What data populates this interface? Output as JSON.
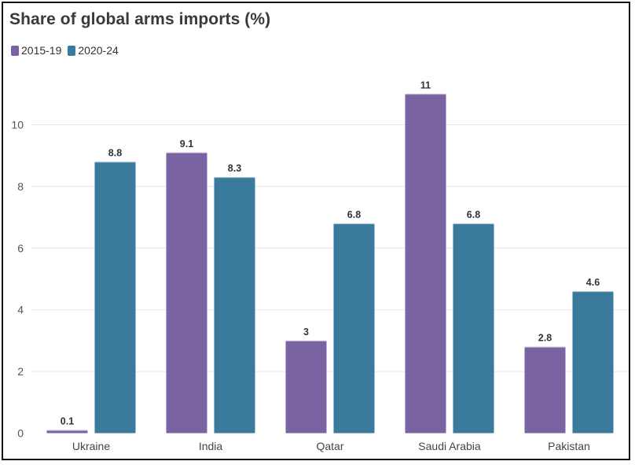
{
  "colors": {
    "series_1": "#7a63a3",
    "series_2": "#3a7a9c",
    "gridline": "#e6e6e6",
    "frame": "#111111"
  },
  "chart_data": {
    "type": "bar",
    "title": "Share of global arms imports (%)",
    "xlabel": "",
    "ylabel": "",
    "categories": [
      "Ukraine",
      "India",
      "Qatar",
      "Saudi Arabia",
      "Pakistan"
    ],
    "series": [
      {
        "name": "2015-19",
        "values": [
          0.1,
          9.1,
          3,
          11,
          2.8
        ]
      },
      {
        "name": "2020-24",
        "values": [
          8.8,
          8.3,
          6.8,
          6.8,
          4.6
        ]
      }
    ],
    "yticks": [
      0,
      2,
      4,
      6,
      8,
      10
    ],
    "ylim": [
      0,
      11.6
    ],
    "grid": true,
    "legend_position": "top-left",
    "data_labels": true
  }
}
